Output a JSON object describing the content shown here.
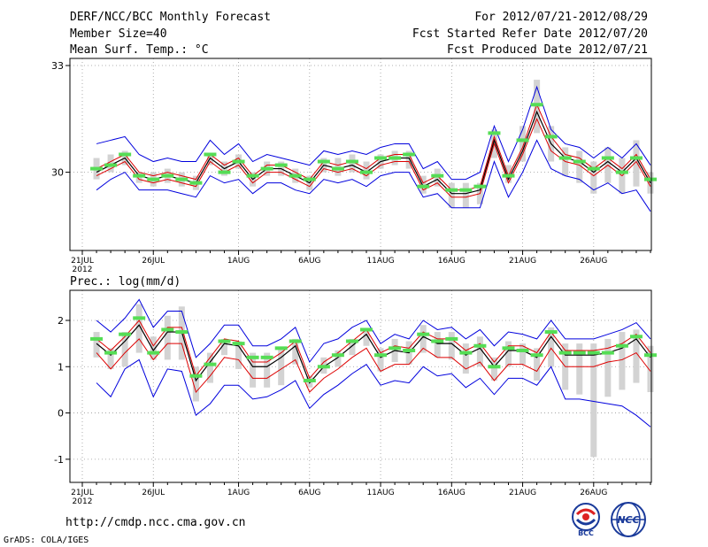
{
  "header": {
    "left": [
      "DERF/NCC/BCC Monthly Forecast",
      "Member Size=40",
      "Mean Surf. Temp.: °C"
    ],
    "right": [
      "For 2012/07/21-2012/08/29",
      "Fcst Started Refer Date 2012/07/20",
      "Fcst Produced Date 2012/07/21"
    ]
  },
  "prec_label": "Prec.: log(mm/d)",
  "footer": {
    "url": "http://cmdp.ncc.cma.gov.cn",
    "grads": "GrADS: COLA/IGES",
    "logo_bcc": "BCC",
    "logo_ncc": "NCC"
  },
  "colors": {
    "observed": "#55dd55",
    "ensemble_range": "#d3d3d3",
    "mean": "#000000",
    "spread_inner": "#dd0000",
    "spread_outer": "#0000dd"
  },
  "chart_data": [
    {
      "type": "line",
      "name": "temperature",
      "ylabel": "Mean Surf. Temp. (°C)",
      "ylim": [
        27.8,
        33.2
      ],
      "yticks": [
        30,
        33
      ],
      "xlim": [
        0,
        40
      ],
      "xticks": [
        {
          "x": 0,
          "label": "21JUL",
          "sub": "2012"
        },
        {
          "x": 5,
          "label": "26JUL"
        },
        {
          "x": 11,
          "label": "1AUG"
        },
        {
          "x": 16,
          "label": "6AUG"
        },
        {
          "x": 21,
          "label": "11AUG"
        },
        {
          "x": 26,
          "label": "16AUG"
        },
        {
          "x": 31,
          "label": "21AUG"
        },
        {
          "x": 36,
          "label": "26AUG"
        }
      ],
      "x": [
        1,
        2,
        3,
        4,
        5,
        6,
        7,
        8,
        9,
        10,
        11,
        12,
        13,
        14,
        15,
        16,
        17,
        18,
        19,
        20,
        21,
        22,
        23,
        24,
        25,
        26,
        27,
        28,
        29,
        30,
        31,
        32,
        33,
        34,
        35,
        36,
        37,
        38,
        39,
        40
      ],
      "series": [
        {
          "name": "ensemble mean",
          "values": [
            30.0,
            30.2,
            30.4,
            29.9,
            29.8,
            29.9,
            29.8,
            29.7,
            30.4,
            30.1,
            30.3,
            29.8,
            30.1,
            30.1,
            29.9,
            29.7,
            30.2,
            30.1,
            30.2,
            30.0,
            30.3,
            30.4,
            30.4,
            29.6,
            29.8,
            29.4,
            29.4,
            29.5,
            30.9,
            29.8,
            30.6,
            31.7,
            30.8,
            30.4,
            30.3,
            30.0,
            30.3,
            30.0,
            30.4,
            29.7
          ]
        },
        {
          "name": "upper inner",
          "values": [
            30.1,
            30.3,
            30.5,
            30.0,
            29.9,
            30.0,
            29.9,
            29.8,
            30.5,
            30.2,
            30.4,
            29.9,
            30.2,
            30.2,
            30.0,
            29.8,
            30.3,
            30.2,
            30.3,
            30.1,
            30.4,
            30.5,
            30.5,
            29.7,
            29.9,
            29.5,
            29.5,
            29.6,
            31.0,
            29.9,
            30.7,
            31.9,
            31.0,
            30.5,
            30.4,
            30.1,
            30.4,
            30.1,
            30.5,
            29.8
          ]
        },
        {
          "name": "lower inner",
          "values": [
            29.9,
            30.1,
            30.3,
            29.8,
            29.7,
            29.8,
            29.7,
            29.6,
            30.3,
            30.0,
            30.2,
            29.7,
            30.0,
            30.0,
            29.8,
            29.6,
            30.1,
            30.0,
            30.1,
            29.9,
            30.2,
            30.3,
            30.3,
            29.5,
            29.7,
            29.3,
            29.3,
            29.4,
            30.8,
            29.7,
            30.5,
            31.5,
            30.6,
            30.3,
            30.2,
            29.9,
            30.2,
            29.9,
            30.3,
            29.6
          ]
        },
        {
          "name": "upper outer",
          "values": [
            30.8,
            30.9,
            31.0,
            30.5,
            30.3,
            30.4,
            30.3,
            30.3,
            30.9,
            30.5,
            30.8,
            30.3,
            30.5,
            30.4,
            30.3,
            30.2,
            30.6,
            30.5,
            30.6,
            30.5,
            30.7,
            30.8,
            30.8,
            30.1,
            30.3,
            29.8,
            29.8,
            30.0,
            31.3,
            30.3,
            31.2,
            32.4,
            31.2,
            30.8,
            30.7,
            30.4,
            30.7,
            30.4,
            30.8,
            30.2
          ]
        },
        {
          "name": "lower outer",
          "values": [
            29.5,
            29.8,
            30.0,
            29.5,
            29.5,
            29.5,
            29.4,
            29.3,
            29.9,
            29.7,
            29.8,
            29.4,
            29.7,
            29.7,
            29.5,
            29.4,
            29.8,
            29.7,
            29.8,
            29.6,
            29.9,
            30.0,
            30.0,
            29.3,
            29.4,
            29.0,
            29.0,
            29.0,
            30.3,
            29.3,
            30.0,
            30.9,
            30.1,
            29.9,
            29.8,
            29.5,
            29.7,
            29.4,
            29.5,
            28.9
          ]
        }
      ],
      "range_bars": {
        "low": [
          29.8,
          30.0,
          30.2,
          29.7,
          29.6,
          29.7,
          29.6,
          29.5,
          30.2,
          29.9,
          30.1,
          29.6,
          29.9,
          29.9,
          29.7,
          29.5,
          30.0,
          29.9,
          30.0,
          29.8,
          30.1,
          30.2,
          30.1,
          29.4,
          29.6,
          29.0,
          29.0,
          29.1,
          30.4,
          29.7,
          30.3,
          31.1,
          30.3,
          29.9,
          29.7,
          29.4,
          29.7,
          29.4,
          29.6,
          29.4
        ],
        "high": [
          30.4,
          30.5,
          30.6,
          30.0,
          30.0,
          30.1,
          30.0,
          29.9,
          30.5,
          30.3,
          30.5,
          30.0,
          30.3,
          30.3,
          30.1,
          29.9,
          30.4,
          30.4,
          30.5,
          30.3,
          30.5,
          30.6,
          30.6,
          29.9,
          30.1,
          29.7,
          29.7,
          29.7,
          31.2,
          30.2,
          31.3,
          32.6,
          31.3,
          30.7,
          30.6,
          30.3,
          30.7,
          30.4,
          30.9,
          30.0
        ]
      },
      "observed": [
        30.1,
        30.2,
        30.5,
        29.9,
        29.8,
        29.9,
        29.8,
        29.7,
        30.5,
        30.0,
        30.3,
        29.9,
        30.1,
        30.2,
        29.9,
        29.8,
        30.3,
        30.1,
        30.3,
        30.0,
        30.4,
        30.4,
        30.5,
        29.6,
        29.9,
        29.5,
        29.5,
        29.6,
        31.1,
        29.9,
        30.9,
        31.9,
        31.0,
        30.4,
        30.3,
        30.1,
        30.4,
        30.0,
        30.4,
        29.8
      ]
    },
    {
      "type": "line",
      "name": "precipitation",
      "ylabel": "Prec.: log(mm/d)",
      "ylim": [
        -1.5,
        2.65
      ],
      "yticks": [
        -1,
        0,
        1,
        2
      ],
      "xlim": [
        0,
        40
      ],
      "xticks": [
        {
          "x": 0,
          "label": "21JUL",
          "sub": "2012"
        },
        {
          "x": 5,
          "label": "26JUL"
        },
        {
          "x": 11,
          "label": "1AUG"
        },
        {
          "x": 16,
          "label": "6AUG"
        },
        {
          "x": 21,
          "label": "11AUG"
        },
        {
          "x": 26,
          "label": "16AUG"
        },
        {
          "x": 31,
          "label": "21AUG"
        },
        {
          "x": 36,
          "label": "26AUG"
        }
      ],
      "x": [
        1,
        2,
        3,
        4,
        5,
        6,
        7,
        8,
        9,
        10,
        11,
        12,
        13,
        14,
        15,
        16,
        17,
        18,
        19,
        20,
        21,
        22,
        23,
        24,
        25,
        26,
        27,
        28,
        29,
        30,
        31,
        32,
        33,
        34,
        35,
        36,
        37,
        38,
        39,
        40
      ],
      "series": [
        {
          "name": "ensemble mean",
          "values": [
            1.5,
            1.25,
            1.55,
            1.9,
            1.35,
            1.75,
            1.75,
            0.7,
            1.1,
            1.5,
            1.45,
            1.0,
            1.0,
            1.2,
            1.45,
            0.65,
            1.0,
            1.2,
            1.45,
            1.7,
            1.2,
            1.35,
            1.3,
            1.65,
            1.5,
            1.5,
            1.25,
            1.4,
            1.0,
            1.35,
            1.35,
            1.2,
            1.65,
            1.25,
            1.25,
            1.25,
            1.3,
            1.4,
            1.6,
            1.2
          ]
        },
        {
          "name": "upper inner",
          "values": [
            1.6,
            1.35,
            1.65,
            2.0,
            1.45,
            1.85,
            1.85,
            0.8,
            1.2,
            1.6,
            1.55,
            1.1,
            1.1,
            1.3,
            1.55,
            0.75,
            1.1,
            1.3,
            1.55,
            1.8,
            1.3,
            1.45,
            1.4,
            1.75,
            1.6,
            1.6,
            1.35,
            1.5,
            1.1,
            1.45,
            1.45,
            1.3,
            1.75,
            1.35,
            1.35,
            1.35,
            1.4,
            1.5,
            1.7,
            1.3
          ]
        },
        {
          "name": "lower inner",
          "values": [
            1.3,
            0.95,
            1.3,
            1.6,
            1.15,
            1.5,
            1.5,
            0.45,
            0.8,
            1.2,
            1.15,
            0.75,
            0.75,
            0.95,
            1.15,
            0.45,
            0.75,
            0.95,
            1.2,
            1.4,
            0.9,
            1.05,
            1.05,
            1.4,
            1.2,
            1.2,
            0.95,
            1.1,
            0.7,
            1.05,
            1.05,
            0.9,
            1.4,
            1.0,
            1.0,
            1.0,
            1.1,
            1.15,
            1.3,
            0.9
          ]
        },
        {
          "name": "upper outer",
          "values": [
            2.0,
            1.75,
            2.05,
            2.45,
            1.85,
            2.2,
            2.2,
            1.2,
            1.5,
            1.9,
            1.9,
            1.45,
            1.45,
            1.6,
            1.85,
            1.1,
            1.5,
            1.6,
            1.85,
            2.0,
            1.5,
            1.7,
            1.6,
            2.0,
            1.8,
            1.85,
            1.6,
            1.8,
            1.45,
            1.75,
            1.7,
            1.6,
            2.0,
            1.6,
            1.6,
            1.6,
            1.7,
            1.8,
            1.95,
            1.6
          ]
        },
        {
          "name": "lower outer",
          "values": [
            0.65,
            0.35,
            0.95,
            1.15,
            0.35,
            0.95,
            0.9,
            -0.05,
            0.2,
            0.6,
            0.6,
            0.3,
            0.35,
            0.5,
            0.7,
            0.1,
            0.4,
            0.6,
            0.85,
            1.05,
            0.6,
            0.7,
            0.65,
            1.0,
            0.8,
            0.85,
            0.55,
            0.75,
            0.4,
            0.75,
            0.75,
            0.6,
            1.0,
            0.3,
            0.3,
            0.25,
            0.2,
            0.15,
            -0.05,
            -0.3
          ]
        }
      ],
      "range_bars": {
        "low": [
          1.2,
          0.95,
          1.0,
          1.3,
          1.15,
          1.15,
          1.15,
          0.25,
          0.65,
          1.25,
          0.95,
          0.55,
          0.55,
          0.6,
          1.05,
          0.55,
          0.85,
          1.0,
          1.25,
          1.45,
          0.9,
          1.1,
          1.05,
          1.3,
          1.2,
          1.15,
          0.85,
          1.0,
          0.7,
          1.0,
          1.05,
          0.7,
          1.0,
          0.5,
          0.4,
          -0.95,
          0.35,
          0.5,
          0.65,
          0.45
        ],
        "high": [
          1.75,
          1.4,
          1.75,
          2.35,
          1.65,
          2.1,
          2.3,
          1.0,
          1.3,
          1.6,
          1.55,
          1.3,
          1.3,
          1.4,
          1.6,
          0.8,
          1.2,
          1.35,
          1.6,
          1.8,
          1.4,
          1.6,
          1.55,
          1.9,
          1.75,
          1.75,
          1.5,
          1.65,
          1.2,
          1.55,
          1.5,
          1.4,
          1.85,
          1.5,
          1.5,
          1.5,
          1.6,
          1.75,
          1.8,
          1.45
        ]
      },
      "observed": [
        1.6,
        1.3,
        1.7,
        2.05,
        1.3,
        1.8,
        1.75,
        0.8,
        1.05,
        1.55,
        1.5,
        1.2,
        1.2,
        1.4,
        1.55,
        0.7,
        1.0,
        1.25,
        1.55,
        1.8,
        1.25,
        1.4,
        1.35,
        1.7,
        1.55,
        1.6,
        1.3,
        1.45,
        1.0,
        1.4,
        1.35,
        1.25,
        1.75,
        1.3,
        1.3,
        1.3,
        1.3,
        1.45,
        1.65,
        1.25
      ]
    }
  ]
}
